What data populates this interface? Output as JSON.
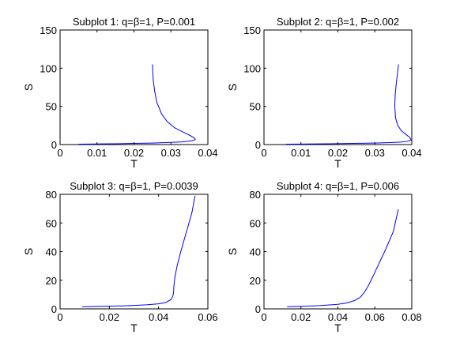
{
  "chart_data": [
    {
      "type": "line",
      "title": "Subplot 1: q=β=1, P=0.001",
      "xlabel": "T",
      "ylabel": "S",
      "xlim": [
        0,
        0.04
      ],
      "ylim": [
        0,
        150
      ],
      "xticks": [
        0,
        0.01,
        0.02,
        0.03,
        0.04
      ],
      "xtick_labels": [
        "0",
        "0.01",
        "0.02",
        "0.03",
        "0.04"
      ],
      "yticks": [
        0,
        50,
        100,
        150
      ],
      "ytick_labels": [
        "0",
        "50",
        "100",
        "150"
      ],
      "grid": false,
      "series": [
        {
          "color": "#0000ff",
          "x": [
            0.005,
            0.01,
            0.015,
            0.02,
            0.025,
            0.03,
            0.033,
            0.035,
            0.0362,
            0.0366,
            0.0362,
            0.0355,
            0.0345,
            0.033,
            0.031,
            0.029,
            0.0275,
            0.0262,
            0.0256,
            0.0252,
            0.0251,
            0.025
          ],
          "y": [
            0.5,
            0.8,
            1.1,
            1.5,
            2.0,
            2.8,
            3.5,
            4.5,
            5.5,
            7,
            9,
            11,
            13.5,
            17,
            22,
            30,
            40,
            55,
            70,
            85,
            95,
            105
          ]
        }
      ]
    },
    {
      "type": "line",
      "title": "Subplot 2: q=β=1, P=0.002",
      "xlabel": "T",
      "ylabel": "S",
      "xlim": [
        0,
        0.04
      ],
      "ylim": [
        0,
        150
      ],
      "xticks": [
        0,
        0.01,
        0.02,
        0.03,
        0.04
      ],
      "xtick_labels": [
        "0",
        "0.01",
        "0.02",
        "0.03",
        "0.04"
      ],
      "yticks": [
        0,
        50,
        100,
        150
      ],
      "ytick_labels": [
        "0",
        "50",
        "100",
        "150"
      ],
      "grid": false,
      "series": [
        {
          "color": "#0000ff",
          "x": [
            0.006,
            0.012,
            0.018,
            0.024,
            0.03,
            0.034,
            0.037,
            0.0388,
            0.0398,
            0.0395,
            0.0385,
            0.0372,
            0.0362,
            0.0356,
            0.0354,
            0.0355,
            0.0358,
            0.0361,
            0.0364
          ],
          "y": [
            0.5,
            0.8,
            1.1,
            1.5,
            2.0,
            2.6,
            3.2,
            4.2,
            6,
            9,
            13,
            18,
            25,
            35,
            50,
            65,
            80,
            92,
            105
          ]
        }
      ]
    },
    {
      "type": "line",
      "title": "Subplot 3: q=β=1, P=0.0039",
      "xlabel": "T",
      "ylabel": "S",
      "xlim": [
        0,
        0.06
      ],
      "ylim": [
        0,
        80
      ],
      "xticks": [
        0,
        0.02,
        0.04,
        0.06
      ],
      "xtick_labels": [
        "0",
        "0.02",
        "0.04",
        "0.06"
      ],
      "yticks": [
        0,
        20,
        40,
        60,
        80
      ],
      "ytick_labels": [
        "0",
        "20",
        "40",
        "60",
        "80"
      ],
      "grid": false,
      "series": [
        {
          "color": "#0000ff",
          "x": [
            0.009,
            0.015,
            0.02,
            0.025,
            0.03,
            0.035,
            0.04,
            0.043,
            0.045,
            0.0458,
            0.0461,
            0.0462,
            0.0466,
            0.0475,
            0.049,
            0.0505,
            0.052,
            0.0535,
            0.0548
          ],
          "y": [
            1.5,
            1.7,
            1.9,
            2.1,
            2.4,
            2.8,
            3.5,
            4.5,
            6.5,
            9,
            12,
            16,
            22,
            30,
            40,
            49,
            58,
            67,
            79
          ]
        }
      ]
    },
    {
      "type": "line",
      "title": "Subplot 4: q=β=1, P=0.006",
      "xlabel": "T",
      "ylabel": "S",
      "xlim": [
        0,
        0.08
      ],
      "ylim": [
        0,
        80
      ],
      "xticks": [
        0,
        0.02,
        0.04,
        0.06,
        0.08
      ],
      "xtick_labels": [
        "0",
        "0.02",
        "0.04",
        "0.06",
        "0.08"
      ],
      "yticks": [
        0,
        20,
        40,
        60,
        80
      ],
      "ytick_labels": [
        "0",
        "20",
        "40",
        "60",
        "80"
      ],
      "grid": false,
      "series": [
        {
          "color": "#0000ff",
          "x": [
            0.0125,
            0.02,
            0.03,
            0.04,
            0.045,
            0.049,
            0.052,
            0.054,
            0.056,
            0.058,
            0.062,
            0.066,
            0.07,
            0.0727
          ],
          "y": [
            1.5,
            1.8,
            2.3,
            3.2,
            4.2,
            5.8,
            8,
            11,
            15,
            20,
            31,
            42,
            54,
            69.5
          ]
        }
      ]
    }
  ]
}
